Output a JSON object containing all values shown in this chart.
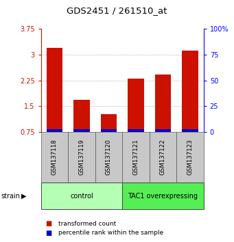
{
  "title": "GDS2451 / 261510_at",
  "samples": [
    "GSM137118",
    "GSM137119",
    "GSM137120",
    "GSM137121",
    "GSM137122",
    "GSM137123"
  ],
  "red_values": [
    3.2,
    1.68,
    1.27,
    2.3,
    2.42,
    3.12
  ],
  "blue_values": [
    0.07,
    0.07,
    0.07,
    0.07,
    0.07,
    0.07
  ],
  "baseline": 0.75,
  "ylim_left": [
    0.75,
    3.75
  ],
  "ylim_right": [
    0,
    100
  ],
  "yticks_left": [
    0.75,
    1.5,
    2.25,
    3.0,
    3.75
  ],
  "yticks_right": [
    0,
    25,
    50,
    75,
    100
  ],
  "ytick_labels_left": [
    "0.75",
    "1.5",
    "2.25",
    "3",
    "3.75"
  ],
  "ytick_labels_right": [
    "0",
    "25",
    "50",
    "75",
    "100%"
  ],
  "groups": [
    {
      "label": "control",
      "indices": [
        0,
        1,
        2
      ],
      "color": "#b3ffb3"
    },
    {
      "label": "TAC1 overexpressing",
      "indices": [
        3,
        4,
        5
      ],
      "color": "#55ee55"
    }
  ],
  "bar_width": 0.6,
  "red_color": "#cc1100",
  "blue_color": "#0000cc",
  "grid_color": "#888888",
  "sample_box_color": "#c8c8c8",
  "legend_red": "transformed count",
  "legend_blue": "percentile rank within the sample"
}
